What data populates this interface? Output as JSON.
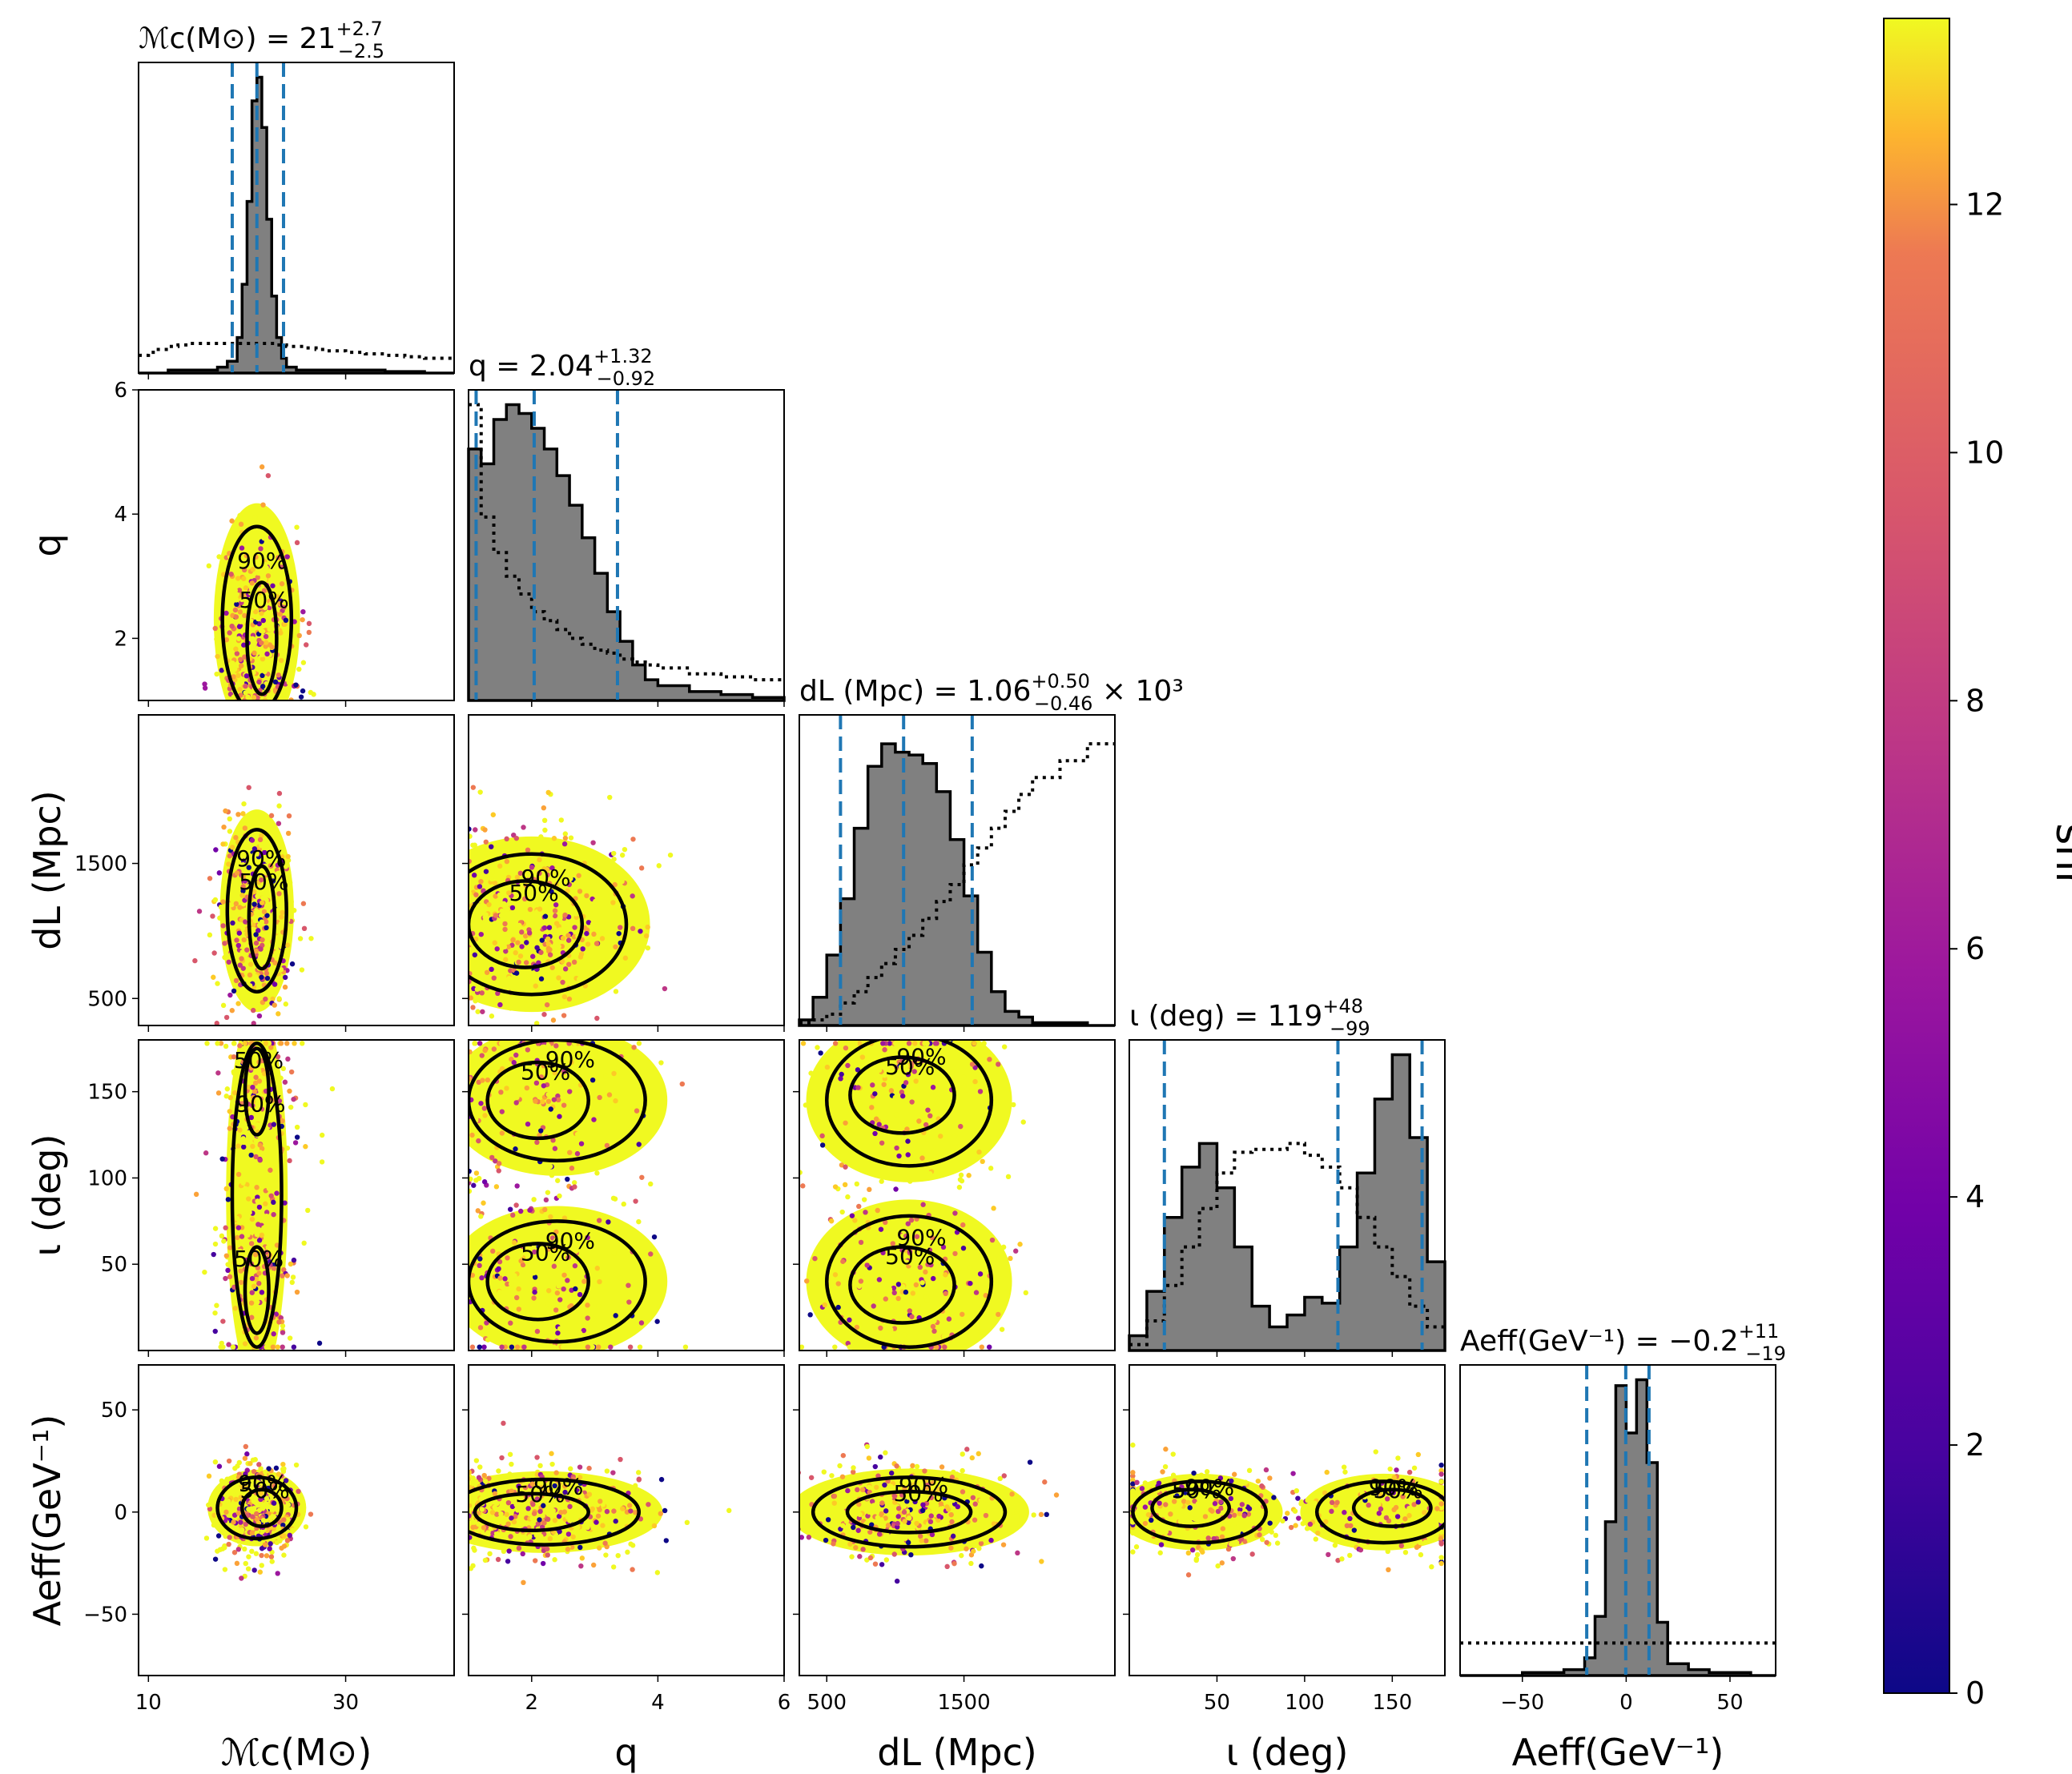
{
  "chart_data": {
    "type": "corner",
    "parameters": [
      {
        "key": "mc",
        "label": "ℳc(M⊙)",
        "range": [
          9,
          41
        ],
        "ticks": [
          10,
          30
        ],
        "title": "ℳc(M⊙) = 21",
        "title_sup": "+2.7",
        "title_sub": "−2.5",
        "quantiles": [
          18.5,
          21.0,
          23.7
        ],
        "hist_x": [
          9,
          10,
          11,
          12,
          13,
          14,
          15,
          16,
          17,
          18,
          19,
          19.5,
          20,
          20.5,
          21,
          21.5,
          22,
          22.5,
          23,
          23.5,
          24,
          25,
          26,
          27,
          28,
          30,
          32,
          34,
          36,
          38,
          41
        ],
        "hist_y": [
          0.0,
          0.0,
          0.0,
          0.01,
          0.01,
          0.01,
          0.01,
          0.01,
          0.02,
          0.04,
          0.12,
          0.3,
          0.58,
          0.92,
          1.0,
          0.83,
          0.52,
          0.26,
          0.12,
          0.05,
          0.02,
          0.01,
          0.01,
          0.01,
          0.01,
          0.01,
          0.01,
          0.005,
          0.005,
          0.0,
          0.0
        ],
        "prior_y": [
          0.06,
          0.07,
          0.08,
          0.09,
          0.095,
          0.1,
          0.1,
          0.1,
          0.1,
          0.1,
          0.1,
          0.1,
          0.1,
          0.1,
          0.1,
          0.1,
          0.1,
          0.1,
          0.095,
          0.095,
          0.09,
          0.09,
          0.085,
          0.08,
          0.075,
          0.07,
          0.065,
          0.06,
          0.055,
          0.05,
          0.045
        ]
      },
      {
        "key": "q",
        "label": "q",
        "range": [
          1,
          6
        ],
        "ticks": [
          2,
          4,
          6
        ],
        "title": "q = 2.04",
        "title_sup": "+1.32",
        "title_sub": "−0.92",
        "quantiles": [
          1.12,
          2.04,
          3.36
        ],
        "hist_x": [
          1.0,
          1.2,
          1.4,
          1.6,
          1.8,
          2.0,
          2.2,
          2.4,
          2.6,
          2.8,
          3.0,
          3.2,
          3.4,
          3.6,
          3.8,
          4.0,
          4.5,
          5.0,
          5.5,
          6.0
        ],
        "hist_y": [
          0.85,
          0.8,
          0.95,
          1.0,
          0.97,
          0.92,
          0.85,
          0.76,
          0.66,
          0.55,
          0.43,
          0.3,
          0.2,
          0.12,
          0.07,
          0.05,
          0.03,
          0.02,
          0.01,
          0.0
        ],
        "prior_y": [
          1.0,
          0.62,
          0.5,
          0.42,
          0.36,
          0.3,
          0.27,
          0.24,
          0.21,
          0.19,
          0.17,
          0.16,
          0.14,
          0.13,
          0.12,
          0.11,
          0.09,
          0.08,
          0.07,
          0.06
        ]
      },
      {
        "key": "dl",
        "label": "dL (Mpc)",
        "range": [
          300,
          2600
        ],
        "ticks": [
          500,
          1500
        ],
        "title": "dL (Mpc) = 1.06",
        "title_sup": "+0.50",
        "title_sub": "−0.46",
        "title_suffix": "× 10³",
        "quantiles": [
          600,
          1060,
          1560
        ],
        "hist_x": [
          300,
          400,
          500,
          600,
          700,
          800,
          900,
          1000,
          1100,
          1200,
          1300,
          1400,
          1500,
          1600,
          1700,
          1800,
          1900,
          2000,
          2200,
          2400,
          2600
        ],
        "hist_y": [
          0.02,
          0.1,
          0.25,
          0.45,
          0.7,
          0.92,
          1.0,
          0.97,
          0.96,
          0.93,
          0.83,
          0.66,
          0.46,
          0.26,
          0.12,
          0.05,
          0.03,
          0.01,
          0.01,
          0.0,
          0.0
        ],
        "prior_y": [
          0.01,
          0.02,
          0.04,
          0.08,
          0.12,
          0.17,
          0.22,
          0.27,
          0.32,
          0.38,
          0.44,
          0.5,
          0.57,
          0.63,
          0.7,
          0.76,
          0.82,
          0.88,
          0.94,
          1.0,
          1.05
        ]
      },
      {
        "key": "iota",
        "label": "ι (deg)",
        "range": [
          0,
          180
        ],
        "ticks": [
          50,
          100,
          150
        ],
        "title": "ι (deg) = 119",
        "title_sup": "+48",
        "title_sub": "−99",
        "quantiles": [
          20,
          119,
          167
        ],
        "hist_x": [
          0,
          10,
          20,
          30,
          40,
          50,
          60,
          70,
          80,
          90,
          100,
          110,
          120,
          130,
          140,
          150,
          160,
          170,
          180
        ],
        "hist_y": [
          0.05,
          0.2,
          0.45,
          0.62,
          0.7,
          0.55,
          0.35,
          0.15,
          0.08,
          0.12,
          0.18,
          0.16,
          0.35,
          0.6,
          0.85,
          1.0,
          0.72,
          0.3,
          0.05
        ],
        "prior_y": [
          0.02,
          0.1,
          0.22,
          0.35,
          0.48,
          0.6,
          0.67,
          0.68,
          0.68,
          0.7,
          0.66,
          0.62,
          0.55,
          0.45,
          0.35,
          0.25,
          0.15,
          0.08,
          0.02
        ]
      },
      {
        "key": "aeff",
        "label": "Aeff(GeV⁻¹)",
        "range": [
          -80,
          72
        ],
        "ticks": [
          -50,
          0,
          50
        ],
        "title": "Aeff(GeV⁻¹) = −0.2",
        "title_sup": "+11",
        "title_sub": "−19",
        "quantiles": [
          -19,
          -0.2,
          11
        ],
        "hist_x": [
          -80,
          -70,
          -60,
          -50,
          -40,
          -30,
          -20,
          -15,
          -10,
          -5,
          0,
          5,
          10,
          15,
          20,
          30,
          40,
          50,
          60,
          72
        ],
        "hist_y": [
          0.0,
          0.0,
          0.0,
          0.01,
          0.01,
          0.02,
          0.06,
          0.2,
          0.52,
          0.98,
          0.82,
          1.0,
          0.72,
          0.18,
          0.04,
          0.02,
          0.01,
          0.01,
          0.0,
          0.0
        ],
        "prior_y": [
          0.11,
          0.11,
          0.11,
          0.11,
          0.11,
          0.11,
          0.11,
          0.11,
          0.11,
          0.11,
          0.11,
          0.11,
          0.11,
          0.11,
          0.11,
          0.11,
          0.11,
          0.11,
          0.11,
          0.11
        ]
      }
    ],
    "contour_labels": [
      "50%",
      "90%"
    ],
    "colorbar": {
      "label": "snr",
      "range": [
        0,
        13.5
      ],
      "ticks": [
        0,
        2,
        4,
        6,
        8,
        10,
        12
      ]
    },
    "colors": {
      "posterior_fill": "#808080",
      "quantile_line": "#1f77b4",
      "contour": "#000000",
      "prior": "#000000"
    }
  }
}
